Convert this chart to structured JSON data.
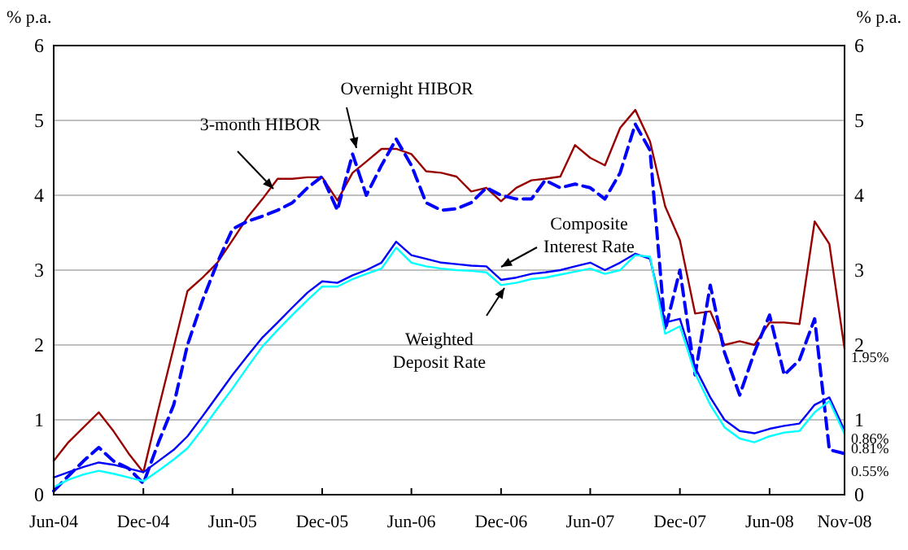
{
  "chart_data": {
    "type": "line",
    "ylabel": "% p.a.",
    "y2label": "% p.a.",
    "x": [
      "2004-06",
      "2004-07",
      "2004-08",
      "2004-09",
      "2004-10",
      "2004-11",
      "2004-12",
      "2005-01",
      "2005-02",
      "2005-03",
      "2005-04",
      "2005-05",
      "2005-06",
      "2005-07",
      "2005-08",
      "2005-09",
      "2005-10",
      "2005-11",
      "2005-12",
      "2006-01",
      "2006-02",
      "2006-03",
      "2006-04",
      "2006-05",
      "2006-06",
      "2006-07",
      "2006-08",
      "2006-09",
      "2006-10",
      "2006-11",
      "2006-12",
      "2007-01",
      "2007-02",
      "2007-03",
      "2007-04",
      "2007-05",
      "2007-06",
      "2007-07",
      "2007-08",
      "2007-09",
      "2007-10",
      "2007-11",
      "2007-12",
      "2008-01",
      "2008-02",
      "2008-03",
      "2008-04",
      "2008-05",
      "2008-06",
      "2008-07",
      "2008-08",
      "2008-09",
      "2008-10",
      "2008-11"
    ],
    "series": [
      {
        "name": "3-month HIBOR",
        "color": "#990000",
        "line_style": "solid",
        "values": [
          0.45,
          0.7,
          0.9,
          1.1,
          0.85,
          0.55,
          0.3,
          1.15,
          1.97,
          2.72,
          2.9,
          3.1,
          3.4,
          3.7,
          3.95,
          4.22,
          4.22,
          4.24,
          4.24,
          3.93,
          4.3,
          4.45,
          4.62,
          4.62,
          4.55,
          4.32,
          4.3,
          4.25,
          4.05,
          4.1,
          3.92,
          4.1,
          4.2,
          4.22,
          4.25,
          4.67,
          4.5,
          4.4,
          4.9,
          5.14,
          4.72,
          3.85,
          3.4,
          2.42,
          2.45,
          2.0,
          2.05,
          2.0,
          2.3,
          2.3,
          2.28,
          3.65,
          3.35,
          1.95
        ]
      },
      {
        "name": "Overnight HIBOR",
        "color": "#0000ff",
        "line_style": "dashed",
        "values": [
          0.05,
          0.25,
          0.45,
          0.63,
          0.45,
          0.35,
          0.15,
          0.7,
          1.2,
          2.0,
          2.6,
          3.1,
          3.55,
          3.65,
          3.72,
          3.8,
          3.9,
          4.1,
          4.25,
          3.8,
          4.55,
          4.0,
          4.4,
          4.75,
          4.4,
          3.9,
          3.8,
          3.82,
          3.9,
          4.1,
          4.0,
          3.95,
          3.95,
          4.2,
          4.1,
          4.15,
          4.1,
          3.95,
          4.3,
          4.95,
          4.6,
          2.2,
          3.0,
          1.6,
          2.8,
          1.9,
          1.33,
          1.9,
          2.4,
          1.6,
          1.8,
          2.35,
          0.6,
          0.55
        ]
      },
      {
        "name": "Composite\nInterest Rate",
        "color": "#0000ff",
        "line_style": "solid",
        "values": [
          0.23,
          0.3,
          0.37,
          0.43,
          0.4,
          0.35,
          0.3,
          0.45,
          0.6,
          0.78,
          1.05,
          1.32,
          1.6,
          1.85,
          2.1,
          2.3,
          2.5,
          2.7,
          2.85,
          2.83,
          2.93,
          3.0,
          3.1,
          3.38,
          3.2,
          3.15,
          3.1,
          3.08,
          3.06,
          3.05,
          2.87,
          2.9,
          2.95,
          2.97,
          3.0,
          3.05,
          3.1,
          3.0,
          3.1,
          3.22,
          3.15,
          2.3,
          2.35,
          1.7,
          1.3,
          1.0,
          0.85,
          0.82,
          0.88,
          0.92,
          0.95,
          1.2,
          1.3,
          0.86
        ]
      },
      {
        "name": "Weighted\nDeposit Rate",
        "color": "#00ffff",
        "line_style": "solid",
        "values": [
          0.1,
          0.2,
          0.27,
          0.32,
          0.28,
          0.23,
          0.18,
          0.32,
          0.47,
          0.62,
          0.88,
          1.15,
          1.42,
          1.7,
          1.98,
          2.2,
          2.4,
          2.6,
          2.78,
          2.78,
          2.88,
          2.95,
          3.02,
          3.3,
          3.1,
          3.05,
          3.02,
          3.0,
          2.99,
          2.97,
          2.8,
          2.83,
          2.88,
          2.9,
          2.94,
          2.98,
          3.02,
          2.95,
          3.0,
          3.2,
          3.18,
          2.15,
          2.25,
          1.62,
          1.2,
          0.9,
          0.75,
          0.7,
          0.78,
          0.83,
          0.85,
          1.1,
          1.25,
          0.81
        ]
      }
    ],
    "xlim": [
      "2004-06",
      "2008-11"
    ],
    "xticks": [
      {
        "value": "2004-06",
        "label": "Jun-04"
      },
      {
        "value": "2004-12",
        "label": "Dec-04"
      },
      {
        "value": "2005-06",
        "label": "Jun-05"
      },
      {
        "value": "2005-12",
        "label": "Dec-05"
      },
      {
        "value": "2006-06",
        "label": "Jun-06"
      },
      {
        "value": "2006-12",
        "label": "Dec-06"
      },
      {
        "value": "2007-06",
        "label": "Jun-07"
      },
      {
        "value": "2007-12",
        "label": "Dec-07"
      },
      {
        "value": "2008-06",
        "label": "Jun-08"
      },
      {
        "value": "2008-11",
        "label": "Nov-08"
      }
    ],
    "ylim": [
      0,
      6
    ],
    "yticks": [
      0,
      1,
      2,
      3,
      4,
      5,
      6
    ],
    "y2lim": [
      0,
      6
    ],
    "y2ticks": [
      0,
      1,
      2,
      3,
      4,
      5,
      6
    ],
    "grid": "y",
    "marker": "none",
    "annotations": [
      {
        "text": "1.95%",
        "x": "2008-11",
        "y": 1.95
      },
      {
        "text": "0.86%",
        "x": "2008-11",
        "y": 0.86
      },
      {
        "text": "0.81%",
        "x": "2008-11",
        "y": 0.81
      },
      {
        "text": "0.55%",
        "x": "2008-11",
        "y": 0.55
      }
    ]
  }
}
